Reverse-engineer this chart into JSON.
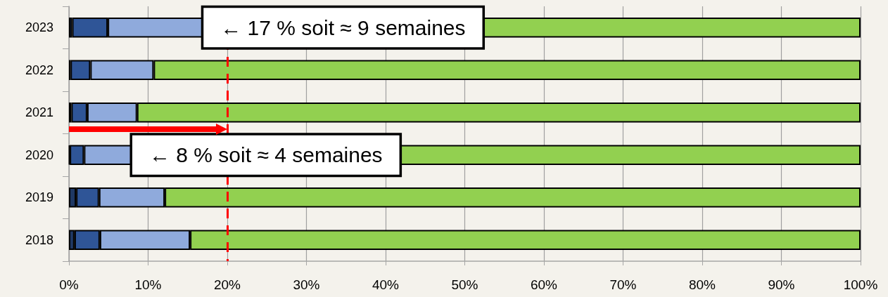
{
  "chart_data": {
    "type": "bar",
    "orientation": "horizontal",
    "stacked": true,
    "categories": [
      "2023",
      "2022",
      "2021",
      "2020",
      "2019",
      "2018"
    ],
    "series": [
      {
        "color": "#1f3864",
        "values": [
          0.4,
          0.2,
          0.3,
          0.1,
          0.9,
          0.7
        ]
      },
      {
        "color": "#2f5597",
        "values": [
          4.5,
          2.5,
          2.0,
          1.8,
          2.9,
          3.2
        ]
      },
      {
        "color": "#8faadc",
        "values": [
          12.1,
          8.0,
          6.3,
          6.1,
          8.3,
          11.4
        ]
      },
      {
        "color": "#92d050",
        "values": [
          83.0,
          89.3,
          91.4,
          92.0,
          87.9,
          84.7
        ]
      }
    ],
    "xlim": [
      0,
      100
    ],
    "xticks": [
      {
        "value": 0,
        "label": "0%"
      },
      {
        "value": 10,
        "label": "10%"
      },
      {
        "value": 20,
        "label": "20%"
      },
      {
        "value": 30,
        "label": "30%"
      },
      {
        "value": 40,
        "label": "40%"
      },
      {
        "value": 50,
        "label": "50%"
      },
      {
        "value": 60,
        "label": "60%"
      },
      {
        "value": 70,
        "label": "70%"
      },
      {
        "value": 80,
        "label": "80%"
      },
      {
        "value": 90,
        "label": "90%"
      },
      {
        "value": 100,
        "label": "100%"
      }
    ],
    "grid": "x",
    "ref_lines": [
      {
        "axis": "x",
        "value": 20,
        "color": "#ff0000",
        "line_style": "dashed"
      }
    ],
    "annotations": [
      {
        "text": "← 17 % soit ≈ 9 semaines",
        "x": 17,
        "y": "2023"
      },
      {
        "text": "← 8 % soit ≈ 4 semaines",
        "x": 8,
        "y": "2020"
      }
    ]
  }
}
